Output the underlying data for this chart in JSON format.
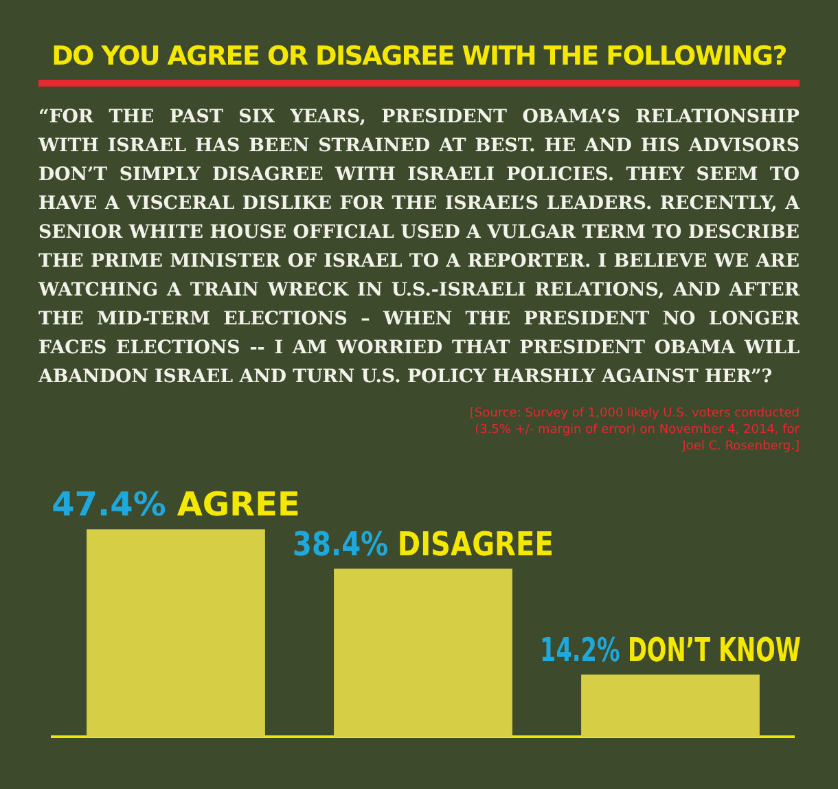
{
  "chart_data": {
    "type": "bar",
    "title": "DO YOU AGREE OR DISAGREE WITH THE FOLLOWING?",
    "subtitle": "“FOR THE PAST SIX YEARS, PRESIDENT OBAMA’S RELATIONSHIP WITH ISRAEL HAS BEEN STRAINED AT BEST. HE AND HIS ADVISORS DON’T SIMPLY DISAGREE WITH ISRAELI POLICIES. THEY SEEM TO HAVE A VISCERAL DISLIKE FOR THE ISRAEL’S LEADERS. RECENTLY, A SENIOR WHITE HOUSE OFFICIAL USED A VULGAR TERM TO DESCRIBE THE PRIME MINISTER OF ISRAEL TO A REPORTER. I BELIEVE WE ARE WATCHING A TRAIN WRECK IN U.S.-ISRAELI RELATIONS, AND AFTER THE MID-TERM ELECTIONS – WHEN THE PRESIDENT NO LONGER FACES ELECTIONS -- I AM WORRIED THAT PRESIDENT OBAMA WILL ABANDON ISRAEL AND TURN U.S. POLICY HARSHLY AGAINST HER”?",
    "annotations": [
      "[Source: Survey of 1,000 likely U.S. voters conducted (3.5% +/- margin of error) on November 4, 2014, for Joel C. Rosenberg.]"
    ],
    "categories": [
      "AGREE",
      "DISAGREE",
      "DON’T KNOW"
    ],
    "values": [
      47.4,
      38.4,
      14.2
    ],
    "value_labels": [
      "47.4%",
      "38.4%",
      "14.2%"
    ],
    "color": "#d6cf45"
  }
}
